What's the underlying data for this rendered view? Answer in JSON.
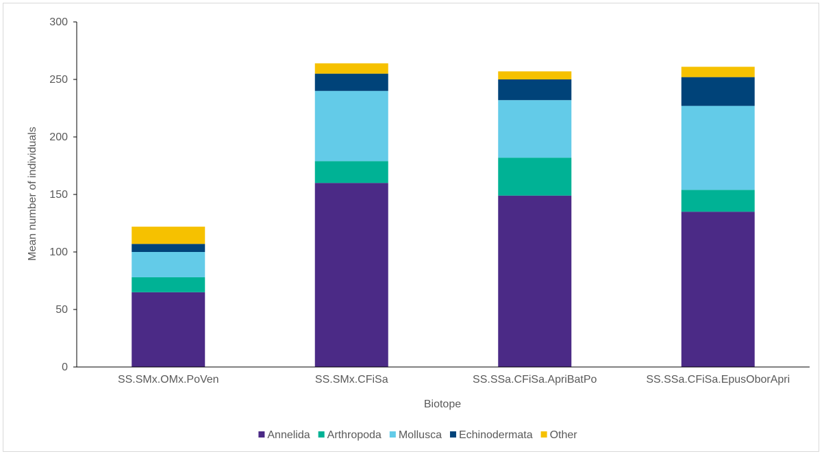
{
  "chart_data": {
    "type": "bar",
    "stacked": true,
    "title": "",
    "xlabel": "Biotope",
    "ylabel": "Mean number of individuals",
    "ylim": [
      0,
      300
    ],
    "yticks": [
      0,
      50,
      100,
      150,
      200,
      250,
      300
    ],
    "grid": false,
    "legend_position": "bottom",
    "categories": [
      "SS.SMx.OMx.PoVen",
      "SS.SMx.CFiSa",
      "SS.SSa.CFiSa.ApriBatPo",
      "SS.SSa.CFiSa.EpusOborApri"
    ],
    "series": [
      {
        "name": "Annelida",
        "color": "#4b2a86",
        "values": [
          65,
          160,
          149,
          135
        ]
      },
      {
        "name": "Arthropoda",
        "color": "#00b295",
        "values": [
          13,
          19,
          33,
          19
        ]
      },
      {
        "name": "Mollusca",
        "color": "#63cbe8",
        "values": [
          22,
          61,
          50,
          73
        ]
      },
      {
        "name": "Echinodermata",
        "color": "#004379",
        "values": [
          7,
          15,
          18,
          25
        ]
      },
      {
        "name": "Other",
        "color": "#f6c100",
        "values": [
          15,
          9,
          7,
          9
        ]
      }
    ]
  }
}
